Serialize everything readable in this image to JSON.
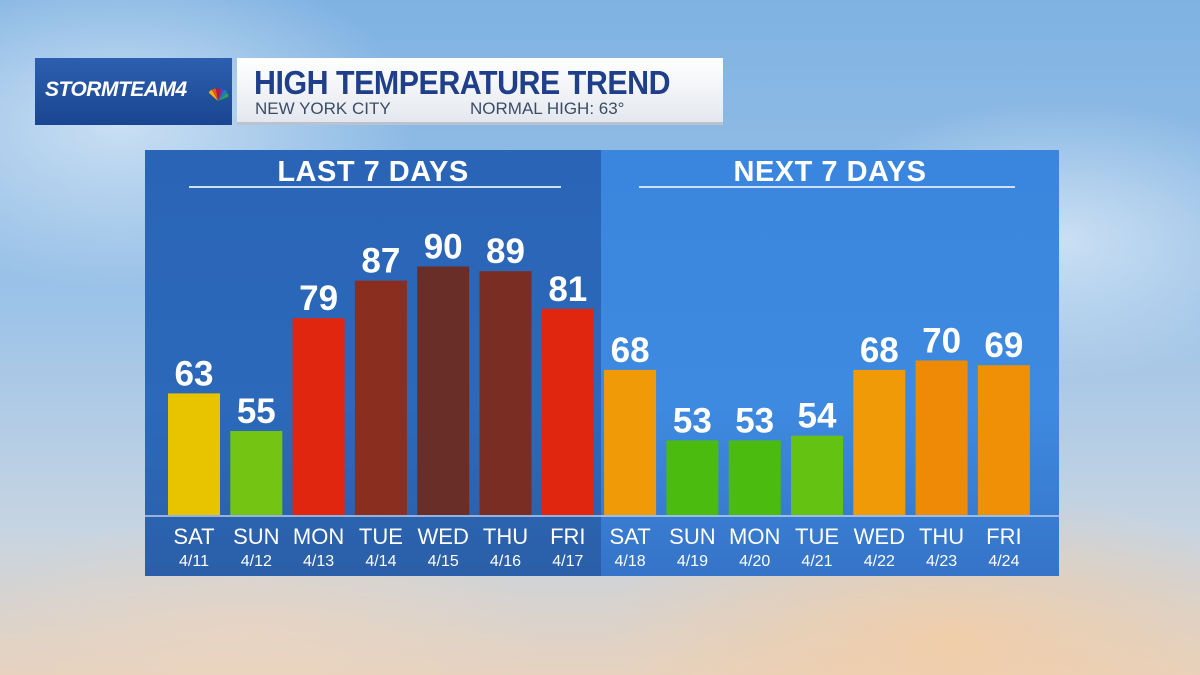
{
  "header": {
    "logo_text": "STORMTEAM4",
    "logo_icon": "nbc-peacock-icon",
    "title": "HIGH TEMPERATURE TREND",
    "city": "NEW YORK CITY",
    "normal_high": "NORMAL HIGH:  63°"
  },
  "panels": {
    "last_label": "LAST 7 DAYS",
    "next_label": "NEXT 7 DAYS"
  },
  "chart_data": {
    "type": "bar",
    "title": "HIGH TEMPERATURE TREND",
    "subtitle": "NEW YORK CITY   NORMAL HIGH:  63°",
    "days": [
      "SAT",
      "SUN",
      "MON",
      "TUE",
      "WED",
      "THU",
      "FRI",
      "SAT",
      "SUN",
      "MON",
      "TUE",
      "WED",
      "THU",
      "FRI"
    ],
    "dates": [
      "4/11",
      "4/12",
      "4/13",
      "4/14",
      "4/15",
      "4/16",
      "4/17",
      "4/18",
      "4/19",
      "4/20",
      "4/21",
      "4/22",
      "4/23",
      "4/24"
    ],
    "values": [
      63,
      55,
      79,
      87,
      90,
      89,
      81,
      68,
      53,
      53,
      54,
      68,
      70,
      69
    ],
    "colors": [
      "#e8c400",
      "#74c414",
      "#e0260e",
      "#8a2f1f",
      "#6a2e28",
      "#7a2d22",
      "#e0260e",
      "#ef9a06",
      "#4bbb10",
      "#4bbb10",
      "#64c212",
      "#ef9a06",
      "#ee8a05",
      "#ef9006"
    ],
    "groups": [
      "LAST 7 DAYS",
      "NEXT 7 DAYS"
    ]
  }
}
